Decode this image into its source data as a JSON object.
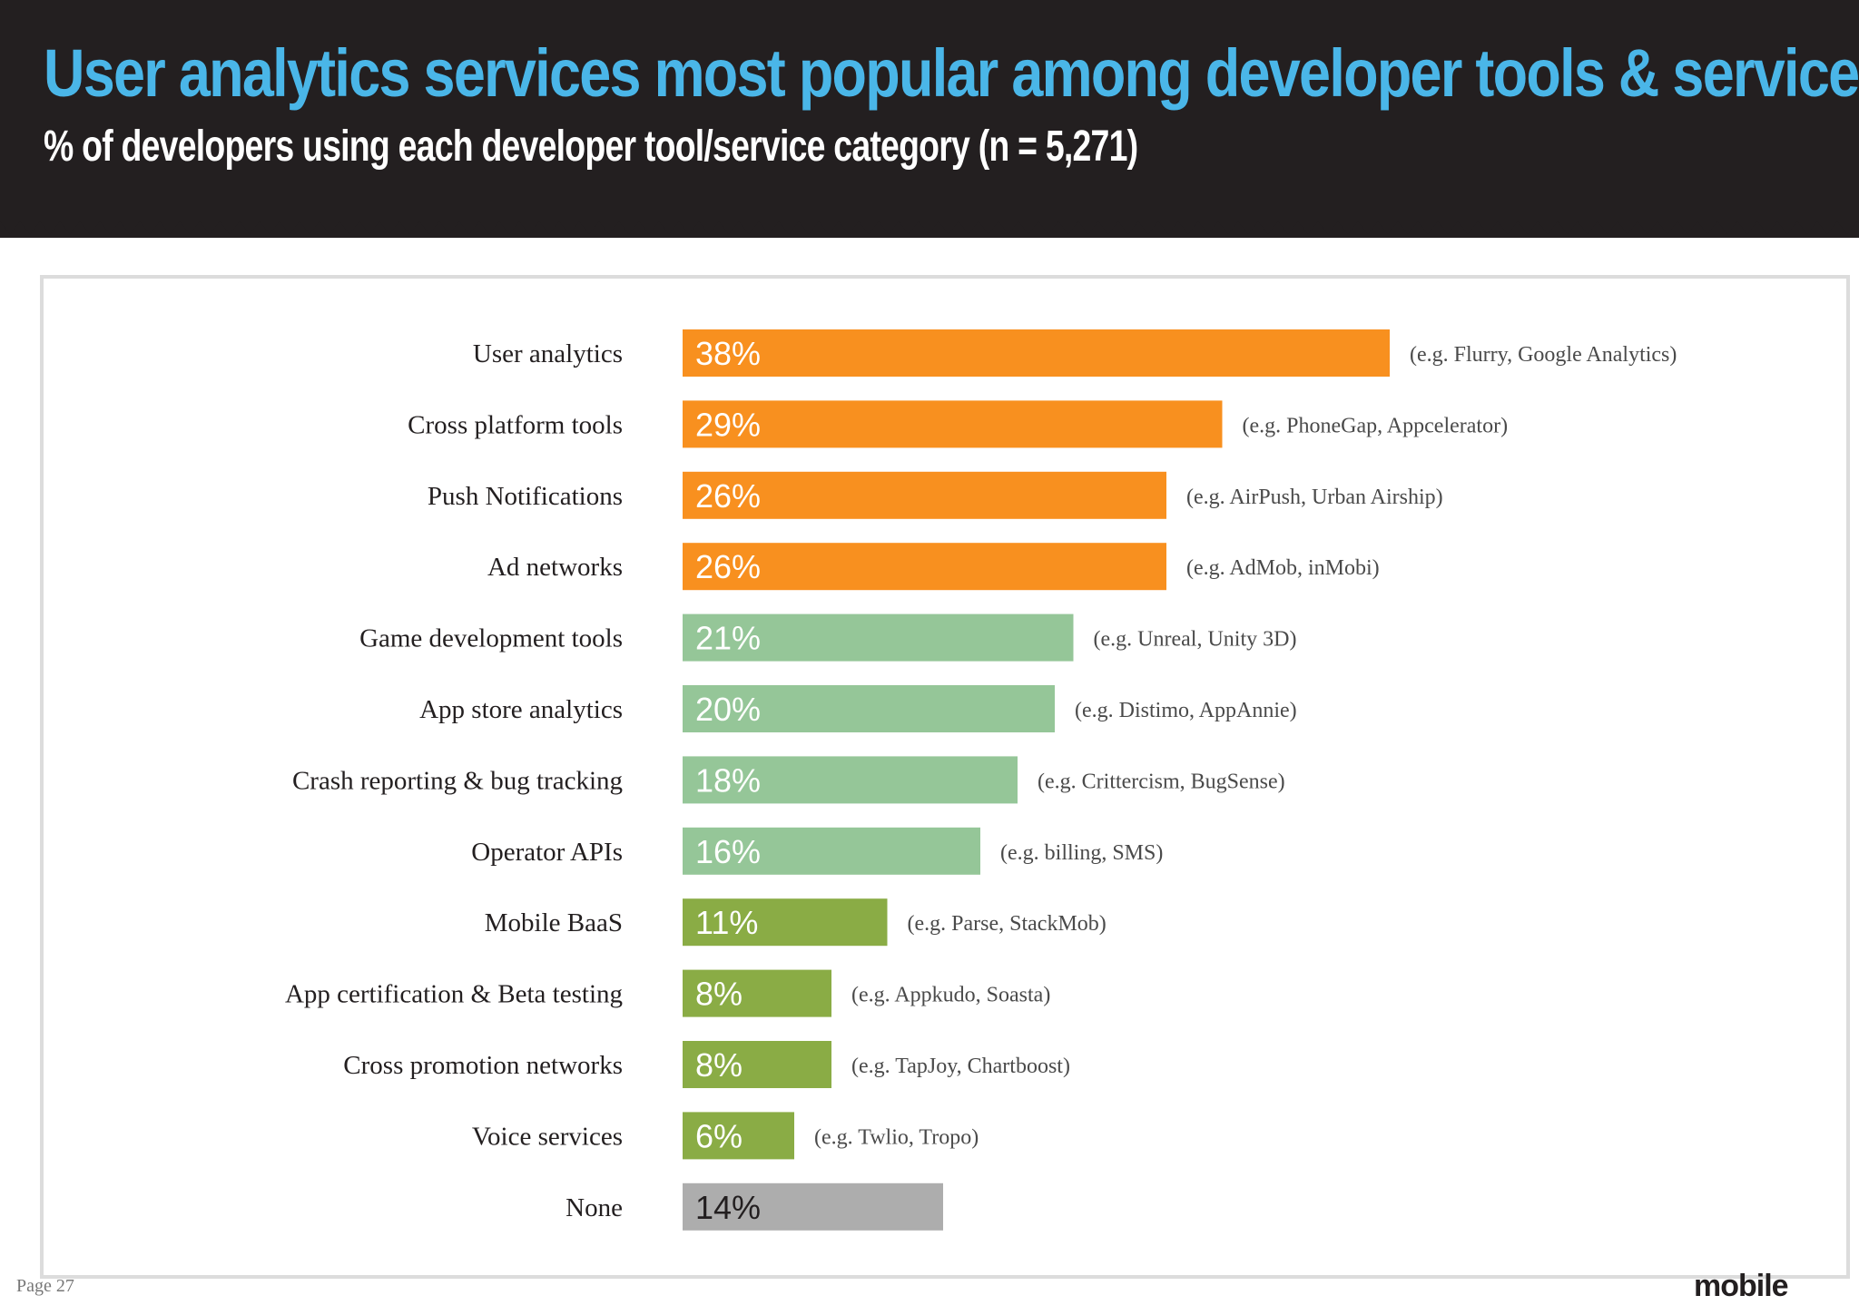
{
  "header": {
    "title": "User analytics services most popular among developer tools & services",
    "subtitle": "% of developers using each developer tool/service category (n = 5,271)"
  },
  "footer": {
    "page_number": "Page 27",
    "brand": "mobile"
  },
  "colors": {
    "header_bg": "#231f20",
    "title": "#4ab6e8",
    "orange": "#f8901f",
    "light_green": "#95c698",
    "olive_green": "#8aac45",
    "gray": "#adadad"
  },
  "chart_data": {
    "type": "bar",
    "orientation": "horizontal",
    "title": "% of developers using each developer tool/service category (n = 5,271)",
    "xlabel": "",
    "ylabel": "",
    "xlim": [
      0,
      40
    ],
    "grid": false,
    "categories": [
      "User analytics",
      "Cross platform tools",
      "Push Notifications",
      "Ad networks",
      "Game development tools",
      "App store analytics",
      "Crash reporting & bug tracking",
      "Operator APIs",
      "Mobile BaaS",
      "App certification & Beta testing",
      "Cross promotion networks",
      "Voice services",
      "None"
    ],
    "values": [
      38,
      29,
      26,
      26,
      21,
      20,
      18,
      16,
      11,
      8,
      8,
      6,
      14
    ],
    "value_labels": [
      "38%",
      "29%",
      "26%",
      "26%",
      "21%",
      "20%",
      "18%",
      "16%",
      "11%",
      "8%",
      "8%",
      "6%",
      "14%"
    ],
    "examples": [
      "(e.g. Flurry, Google Analytics)",
      "(e.g. PhoneGap, Appcelerator)",
      "(e.g. AirPush, Urban Airship)",
      "(e.g. AdMob, inMobi)",
      "(e.g. Unreal, Unity 3D)",
      "(e.g. Distimo, AppAnnie)",
      "(e.g. Crittercism, BugSense)",
      "(e.g. billing, SMS)",
      "(e.g. Parse, StackMob)",
      "(e.g. Appkudo, Soasta)",
      "(e.g. TapJoy, Chartboost)",
      "(e.g. Twlio, Tropo)",
      ""
    ],
    "bar_colors": [
      "#f8901f",
      "#f8901f",
      "#f8901f",
      "#f8901f",
      "#95c698",
      "#95c698",
      "#95c698",
      "#95c698",
      "#8aac45",
      "#8aac45",
      "#8aac45",
      "#8aac45",
      "#adadad"
    ],
    "value_label_colors": [
      "#ffffff",
      "#ffffff",
      "#ffffff",
      "#ffffff",
      "#ffffff",
      "#ffffff",
      "#ffffff",
      "#ffffff",
      "#ffffff",
      "#ffffff",
      "#ffffff",
      "#ffffff",
      "#231f20"
    ]
  }
}
